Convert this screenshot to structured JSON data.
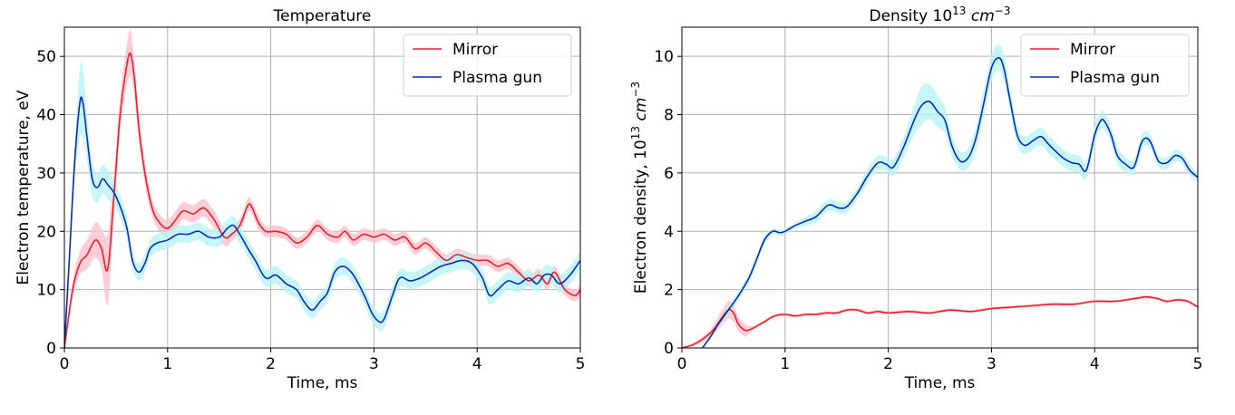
{
  "chart_data": [
    {
      "type": "line",
      "title": "Temperature",
      "xlabel": "Time, ms",
      "ylabel": "Electron temperature, eV",
      "xlim": [
        0,
        5
      ],
      "ylim": [
        0,
        55
      ],
      "xticks": [
        0,
        1,
        2,
        3,
        4,
        5
      ],
      "yticks": [
        0,
        10,
        20,
        30,
        40,
        50
      ],
      "grid": true,
      "legend_position": "top-right",
      "series": [
        {
          "name": "Mirror",
          "color": "#e8202a",
          "band_color": "#ffc0cb",
          "x": [
            0,
            0.08,
            0.15,
            0.22,
            0.3,
            0.36,
            0.42,
            0.48,
            0.54,
            0.6,
            0.64,
            0.68,
            0.72,
            0.78,
            0.85,
            0.92,
            1.0,
            1.08,
            1.15,
            1.25,
            1.35,
            1.45,
            1.55,
            1.62,
            1.7,
            1.78,
            1.82,
            1.88,
            1.95,
            2.05,
            2.15,
            2.25,
            2.35,
            2.45,
            2.55,
            2.65,
            2.72,
            2.8,
            2.9,
            3.0,
            3.1,
            3.2,
            3.3,
            3.4,
            3.5,
            3.6,
            3.7,
            3.8,
            3.9,
            4.0,
            4.1,
            4.2,
            4.3,
            4.4,
            4.5,
            4.6,
            4.68,
            4.75,
            4.85,
            4.95,
            5.0
          ],
          "y": [
            0,
            10,
            14.5,
            16,
            18.5,
            17,
            13.5,
            26,
            40,
            48,
            50.5,
            46,
            38,
            30,
            24,
            21.5,
            20.5,
            22,
            23.5,
            23,
            24,
            22,
            19,
            19.5,
            21,
            24.5,
            24,
            21.5,
            20,
            20,
            19.5,
            18,
            19,
            21,
            19.5,
            19,
            20,
            18.5,
            19.5,
            19,
            19.5,
            18.5,
            19,
            17,
            18,
            16.5,
            15,
            16,
            15.5,
            15,
            15,
            14,
            14.5,
            13,
            11.5,
            12.5,
            11,
            13,
            10,
            9,
            10
          ],
          "band": [
            0,
            1.5,
            2,
            2.5,
            3,
            3.5,
            6,
            4,
            3,
            3.5,
            4,
            3,
            2.5,
            2,
            1.5,
            1.5,
            1.5,
            1.5,
            1.5,
            1.5,
            1.5,
            1.5,
            1.5,
            1.2,
            1.2,
            1.2,
            1.2,
            1.2,
            1.0,
            1.0,
            1.0,
            1.0,
            1.0,
            1.0,
            1.0,
            1.0,
            1.0,
            1.0,
            1.0,
            1.0,
            1.0,
            1.0,
            1.0,
            1.0,
            1.0,
            1.0,
            1.0,
            1.0,
            1.0,
            1.0,
            1.0,
            1.0,
            1.0,
            1.0,
            1.0,
            1.0,
            1.0,
            1.0,
            1.0,
            1.0,
            1.0
          ]
        },
        {
          "name": "Plasma gun",
          "color": "#0a2bb5",
          "band_color": "#b8f4f6",
          "x": [
            0,
            0.05,
            0.1,
            0.15,
            0.18,
            0.22,
            0.27,
            0.32,
            0.37,
            0.42,
            0.5,
            0.6,
            0.66,
            0.72,
            0.78,
            0.83,
            0.9,
            1.0,
            1.1,
            1.2,
            1.3,
            1.4,
            1.5,
            1.58,
            1.64,
            1.7,
            1.78,
            1.85,
            1.95,
            2.05,
            2.15,
            2.25,
            2.32,
            2.4,
            2.48,
            2.55,
            2.62,
            2.7,
            2.78,
            2.85,
            2.92,
            2.98,
            3.05,
            3.1,
            3.18,
            3.25,
            3.35,
            3.45,
            3.55,
            3.65,
            3.75,
            3.85,
            3.95,
            4.05,
            4.12,
            4.2,
            4.3,
            4.4,
            4.5,
            4.58,
            4.65,
            4.72,
            4.8,
            4.9,
            5.0
          ],
          "y": [
            0,
            16,
            32,
            42,
            42,
            36,
            29,
            27.5,
            29,
            28,
            26,
            21,
            15,
            13,
            14.5,
            17,
            18,
            18.5,
            19.5,
            19.5,
            20,
            19,
            19,
            20.5,
            21,
            19.5,
            17,
            15,
            12,
            12.5,
            11,
            10,
            8,
            6.5,
            8,
            9.5,
            13,
            14,
            13,
            11,
            8.5,
            6,
            4.5,
            5,
            9,
            12,
            11.5,
            12,
            13,
            14,
            14.5,
            15,
            14.5,
            12,
            9,
            10,
            11.5,
            11,
            12,
            11,
            12.5,
            12.5,
            11,
            12.5,
            15
          ],
          "band": [
            0,
            2,
            3,
            6,
            6,
            4,
            3,
            2.5,
            2.5,
            2.5,
            2,
            2,
            1.5,
            1.5,
            1.5,
            1.5,
            1.5,
            1.5,
            1.5,
            1.5,
            1.5,
            1.5,
            1.5,
            1.5,
            1.5,
            1.5,
            1.5,
            1.5,
            1.5,
            1.5,
            1.5,
            1.5,
            1.5,
            1.5,
            1.5,
            1.5,
            1.5,
            1.5,
            1.5,
            1.5,
            1.5,
            1.5,
            1.5,
            1.5,
            1.5,
            1.5,
            1.5,
            1.5,
            1.5,
            1.5,
            1.5,
            1.5,
            1.5,
            1.5,
            1.5,
            1.5,
            1.5,
            1.5,
            1.5,
            1.5,
            1.5,
            1.5,
            1.5,
            1.5,
            1.5
          ]
        }
      ]
    },
    {
      "type": "line",
      "title": "Density 10",
      "title_sup": "13",
      "title_unit": "cm",
      "title_unit_sup": "−3",
      "xlabel": "Time, ms",
      "ylabel": "Electron density, 10",
      "ylabel_sup": "13",
      "ylabel_unit": "cm",
      "ylabel_unit_sup": "−3",
      "xlim": [
        0,
        5
      ],
      "ylim": [
        0,
        11
      ],
      "xticks": [
        0,
        1,
        2,
        3,
        4,
        5
      ],
      "yticks": [
        0,
        2,
        4,
        6,
        8,
        10
      ],
      "grid": true,
      "legend_position": "top-right",
      "series": [
        {
          "name": "Mirror",
          "color": "#e8202a",
          "band_color": "#ffc0cb",
          "x": [
            0,
            0.1,
            0.2,
            0.3,
            0.38,
            0.45,
            0.5,
            0.55,
            0.62,
            0.7,
            0.8,
            0.9,
            1.0,
            1.1,
            1.2,
            1.3,
            1.4,
            1.5,
            1.6,
            1.7,
            1.8,
            1.9,
            2.0,
            2.2,
            2.4,
            2.6,
            2.8,
            3.0,
            3.2,
            3.4,
            3.6,
            3.8,
            4.0,
            4.2,
            4.4,
            4.5,
            4.6,
            4.7,
            4.8,
            4.9,
            5.0
          ],
          "y": [
            0,
            0.1,
            0.3,
            0.6,
            1.0,
            1.3,
            1.2,
            0.8,
            0.6,
            0.7,
            0.9,
            1.1,
            1.15,
            1.1,
            1.15,
            1.15,
            1.2,
            1.2,
            1.3,
            1.3,
            1.2,
            1.25,
            1.2,
            1.25,
            1.2,
            1.3,
            1.25,
            1.35,
            1.4,
            1.45,
            1.5,
            1.5,
            1.6,
            1.6,
            1.7,
            1.75,
            1.7,
            1.6,
            1.65,
            1.6,
            1.4
          ],
          "band": [
            0,
            0.05,
            0.1,
            0.15,
            0.25,
            0.3,
            0.3,
            0.25,
            0.2,
            0.05,
            0.05,
            0.05,
            0.05,
            0.05,
            0.05,
            0.05,
            0.05,
            0.05,
            0.05,
            0.05,
            0.05,
            0.05,
            0.05,
            0.05,
            0.05,
            0.05,
            0.05,
            0.05,
            0.05,
            0.05,
            0.05,
            0.05,
            0.05,
            0.05,
            0.05,
            0.05,
            0.05,
            0.05,
            0.05,
            0.05,
            0.05
          ]
        },
        {
          "name": "Plasma gun",
          "color": "#0a2bb5",
          "band_color": "#b8f4f6",
          "x": [
            0.2,
            0.28,
            0.35,
            0.45,
            0.55,
            0.65,
            0.72,
            0.8,
            0.88,
            0.95,
            1.0,
            1.1,
            1.2,
            1.3,
            1.42,
            1.52,
            1.6,
            1.7,
            1.8,
            1.9,
            1.98,
            2.05,
            2.15,
            2.25,
            2.32,
            2.4,
            2.48,
            2.55,
            2.62,
            2.7,
            2.78,
            2.85,
            2.92,
            3.0,
            3.07,
            3.12,
            3.18,
            3.25,
            3.32,
            3.4,
            3.48,
            3.55,
            3.62,
            3.7,
            3.78,
            3.85,
            3.92,
            4.0,
            4.06,
            4.1,
            4.16,
            4.22,
            4.3,
            4.38,
            4.45,
            4.5,
            4.55,
            4.62,
            4.7,
            4.78,
            4.85,
            4.92,
            5.0
          ],
          "y": [
            0,
            0.4,
            0.8,
            1.3,
            1.8,
            2.4,
            3.0,
            3.7,
            4.0,
            3.95,
            4.0,
            4.2,
            4.35,
            4.5,
            4.9,
            4.8,
            4.85,
            5.3,
            5.9,
            6.35,
            6.3,
            6.2,
            6.9,
            7.8,
            8.3,
            8.45,
            8.1,
            7.8,
            6.9,
            6.4,
            6.55,
            7.2,
            8.3,
            9.6,
            9.95,
            9.6,
            8.5,
            7.3,
            6.95,
            7.1,
            7.25,
            7.0,
            6.75,
            6.5,
            6.35,
            6.3,
            6.1,
            7.3,
            7.8,
            7.75,
            7.3,
            6.6,
            6.3,
            6.2,
            7.0,
            7.2,
            7.0,
            6.4,
            6.35,
            6.6,
            6.5,
            6.1,
            5.85
          ],
          "band": [
            0.05,
            0.05,
            0.1,
            0.15,
            0.15,
            0.15,
            0.15,
            0.15,
            0.1,
            0.1,
            0.1,
            0.1,
            0.15,
            0.2,
            0.2,
            0.2,
            0.2,
            0.2,
            0.25,
            0.25,
            0.25,
            0.3,
            0.35,
            0.5,
            0.65,
            0.6,
            0.55,
            0.45,
            0.35,
            0.3,
            0.35,
            0.4,
            0.45,
            0.45,
            0.45,
            0.45,
            0.4,
            0.35,
            0.3,
            0.3,
            0.3,
            0.3,
            0.3,
            0.3,
            0.3,
            0.3,
            0.3,
            0.3,
            0.3,
            0.3,
            0.3,
            0.3,
            0.25,
            0.25,
            0.25,
            0.25,
            0.25,
            0.2,
            0.2,
            0.2,
            0.2,
            0.2,
            0.15
          ]
        }
      ]
    }
  ]
}
